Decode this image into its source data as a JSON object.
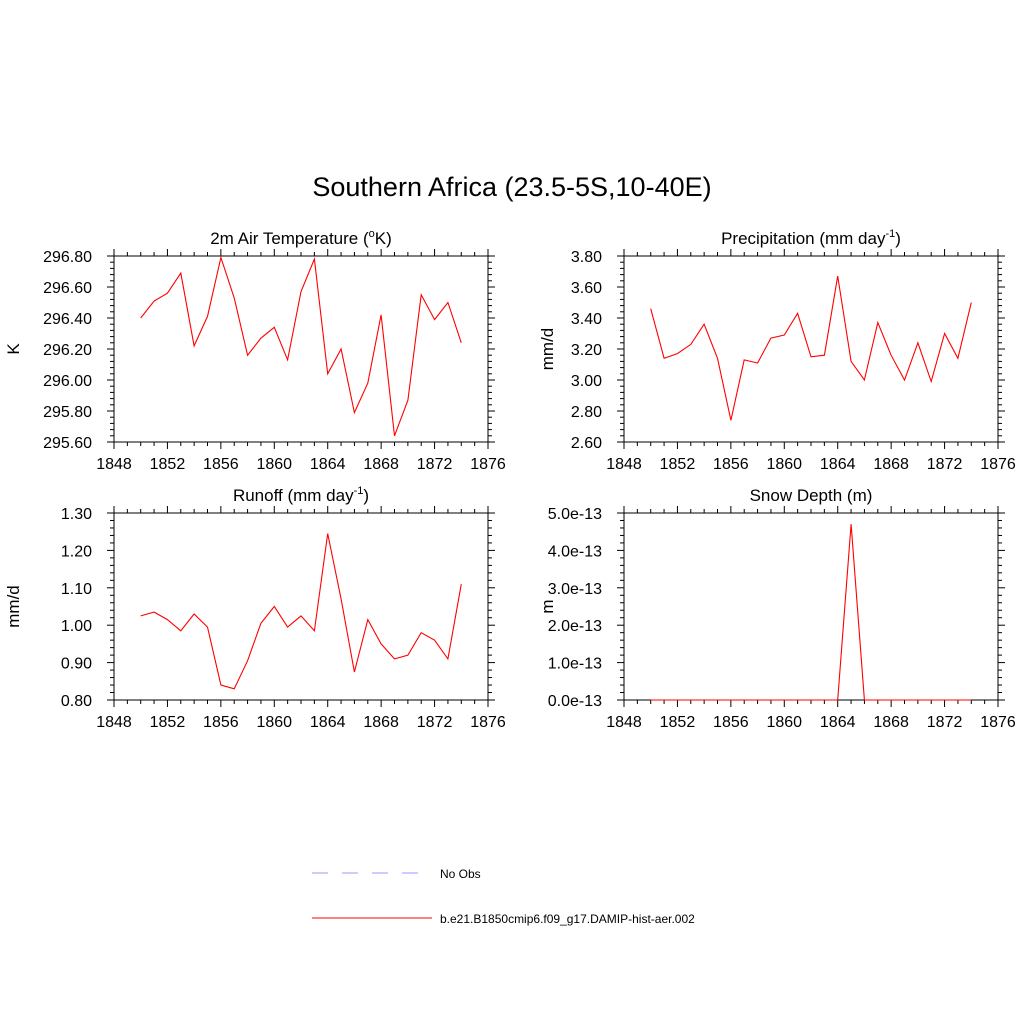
{
  "figure": {
    "suptitle": "Southern Africa (23.5-5S,10-40E)"
  },
  "legend": {
    "entries": [
      {
        "label": "No Obs",
        "color": "#9999ff",
        "style": "dashed"
      },
      {
        "label": "b.e21.B1850cmip6.f09_g17.DAMIP-hist-aer.002",
        "color": "#ff0000",
        "style": "solid"
      }
    ]
  },
  "chart_data": [
    {
      "type": "line",
      "title": "2m Air Temperature (°K)",
      "title_base": "2m Air Temperature (",
      "title_sup": "o",
      "title_tail": "K)",
      "ylabel": "K",
      "xlim": [
        1848,
        1876
      ],
      "ylim": [
        295.6,
        296.8
      ],
      "xticks": [
        "1848",
        "1852",
        "1856",
        "1860",
        "1864",
        "1868",
        "1872",
        "1876"
      ],
      "yticks": [
        "295.60",
        "295.80",
        "296.00",
        "296.20",
        "296.40",
        "296.60",
        "296.80"
      ],
      "x": [
        1850,
        1851,
        1852,
        1853,
        1854,
        1855,
        1856,
        1857,
        1858,
        1859,
        1860,
        1861,
        1862,
        1863,
        1864,
        1865,
        1866,
        1867,
        1868,
        1869,
        1870,
        1871,
        1872,
        1873,
        1874
      ],
      "series": [
        {
          "color": "#ff0000",
          "values": [
            296.4,
            296.51,
            296.56,
            296.69,
            296.22,
            296.41,
            296.79,
            296.53,
            296.16,
            296.27,
            296.34,
            296.13,
            296.57,
            296.78,
            296.04,
            296.2,
            295.79,
            295.98,
            296.42,
            295.64,
            295.87,
            296.55,
            296.39,
            296.5,
            296.24
          ]
        }
      ]
    },
    {
      "type": "line",
      "title": "Precipitation (mm day-1)",
      "title_base": "Precipitation (mm day",
      "title_sup": "-1",
      "title_tail": ")",
      "ylabel": "mm/d",
      "xlim": [
        1848,
        1876
      ],
      "ylim": [
        2.6,
        3.8
      ],
      "xticks": [
        "1848",
        "1852",
        "1856",
        "1860",
        "1864",
        "1868",
        "1872",
        "1876"
      ],
      "yticks": [
        "2.60",
        "2.80",
        "3.00",
        "3.20",
        "3.40",
        "3.60",
        "3.80"
      ],
      "x": [
        1850,
        1851,
        1852,
        1853,
        1854,
        1855,
        1856,
        1857,
        1858,
        1859,
        1860,
        1861,
        1862,
        1863,
        1864,
        1865,
        1866,
        1867,
        1868,
        1869,
        1870,
        1871,
        1872,
        1873,
        1874
      ],
      "series": [
        {
          "color": "#ff0000",
          "values": [
            3.46,
            3.14,
            3.17,
            3.23,
            3.36,
            3.14,
            2.74,
            3.13,
            3.11,
            3.27,
            3.29,
            3.43,
            3.15,
            3.16,
            3.67,
            3.12,
            3.0,
            3.37,
            3.16,
            3.0,
            3.24,
            2.99,
            3.3,
            3.14,
            3.5
          ]
        }
      ]
    },
    {
      "type": "line",
      "title": "Runoff (mm day-1)",
      "title_base": "Runoff (mm day",
      "title_sup": "-1",
      "title_tail": ")",
      "ylabel": "mm/d",
      "xlim": [
        1848,
        1876
      ],
      "ylim": [
        0.8,
        1.3
      ],
      "xticks": [
        "1848",
        "1852",
        "1856",
        "1860",
        "1864",
        "1868",
        "1872",
        "1876"
      ],
      "yticks": [
        "0.80",
        "0.90",
        "1.00",
        "1.10",
        "1.20",
        "1.30"
      ],
      "x": [
        1850,
        1851,
        1852,
        1853,
        1854,
        1855,
        1856,
        1857,
        1858,
        1859,
        1860,
        1861,
        1862,
        1863,
        1864,
        1865,
        1866,
        1867,
        1868,
        1869,
        1870,
        1871,
        1872,
        1873,
        1874
      ],
      "series": [
        {
          "color": "#ff0000",
          "values": [
            1.025,
            1.035,
            1.015,
            0.985,
            1.03,
            0.995,
            0.84,
            0.83,
            0.905,
            1.005,
            1.05,
            0.995,
            1.025,
            0.985,
            1.245,
            1.07,
            0.875,
            1.015,
            0.95,
            0.91,
            0.92,
            0.98,
            0.96,
            0.91,
            1.11
          ]
        }
      ]
    },
    {
      "type": "line",
      "title": "Snow Depth (m)",
      "title_base": "Snow Depth (m)",
      "title_sup": "",
      "title_tail": "",
      "ylabel": "m",
      "xlim": [
        1848,
        1876
      ],
      "ylim": [
        0,
        5e-13
      ],
      "xticks": [
        "1848",
        "1852",
        "1856",
        "1860",
        "1864",
        "1868",
        "1872",
        "1876"
      ],
      "yticks": [
        "0.0e-13",
        "1.0e-13",
        "2.0e-13",
        "3.0e-13",
        "4.0e-13",
        "5.0e-13"
      ],
      "x": [
        1850,
        1851,
        1852,
        1853,
        1854,
        1855,
        1856,
        1857,
        1858,
        1859,
        1860,
        1861,
        1862,
        1863,
        1864,
        1865,
        1866,
        1867,
        1868,
        1869,
        1870,
        1871,
        1872,
        1873,
        1874
      ],
      "series": [
        {
          "color": "#ff0000",
          "values": [
            0,
            0,
            0,
            0,
            0,
            0,
            0,
            0,
            0,
            0,
            0,
            0,
            0,
            0,
            0,
            4.7e-13,
            0,
            0,
            0,
            0,
            0,
            0,
            0,
            0,
            0
          ]
        }
      ]
    }
  ]
}
